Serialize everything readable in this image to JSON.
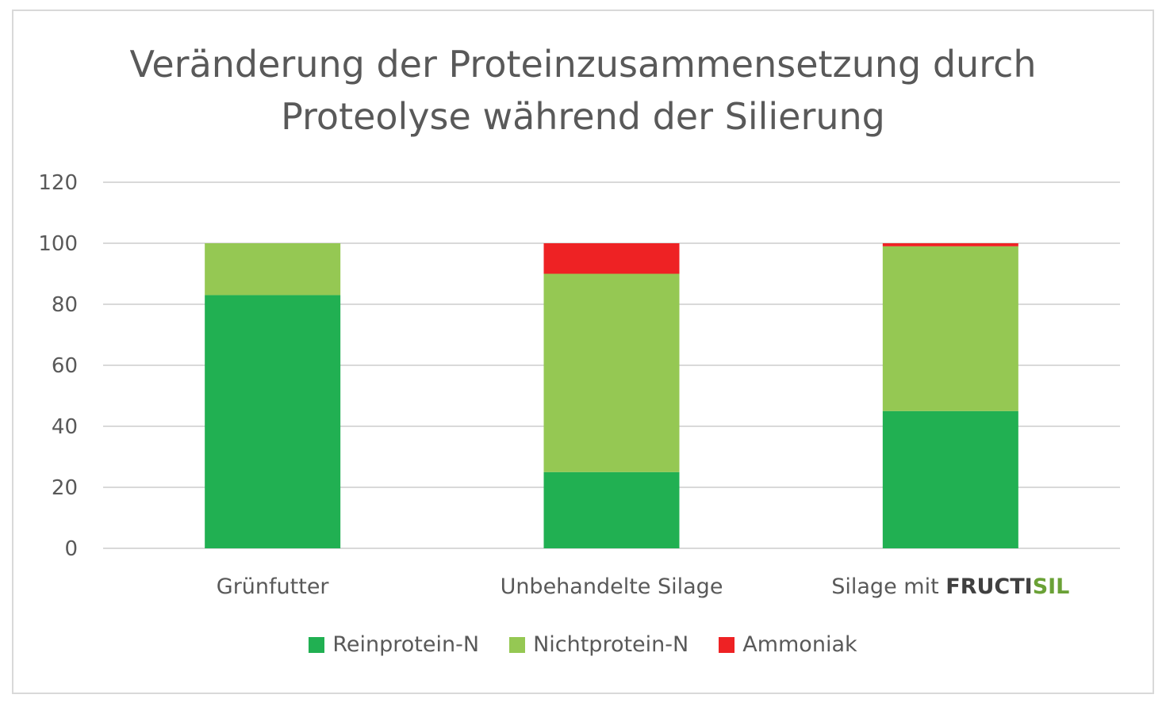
{
  "title_line1": "Veränderung der Proteinzusammensetzung durch",
  "title_line2": "Proteolyse während der Silierung",
  "colors": {
    "reinprotein": "#21b052",
    "nichtprotein": "#95c853",
    "ammoniak": "#ee2224",
    "grid": "#d9d9d9",
    "text": "#595959",
    "brand_dark": "#404040",
    "brand_green": "#6aa136"
  },
  "chart_data": {
    "type": "bar",
    "stacked": true,
    "categories": [
      "Grünfutter",
      "Unbehandelte Silage",
      "Silage mit FRUCTISIL"
    ],
    "category_parts": [
      {
        "plain": "Grünfutter"
      },
      {
        "plain": "Unbehandelte Silage"
      },
      {
        "plain": "Silage mit ",
        "brand_dark": "FRUCTI",
        "brand_green": "SIL"
      }
    ],
    "series": [
      {
        "name": "Reinprotein-N",
        "values": [
          83,
          25,
          45
        ],
        "color": "#21b052"
      },
      {
        "name": "Nichtprotein-N",
        "values": [
          17,
          65,
          54
        ],
        "color": "#95c853"
      },
      {
        "name": "Ammoniak",
        "values": [
          0,
          10,
          1
        ],
        "color": "#ee2224"
      }
    ],
    "ylim": [
      0,
      120
    ],
    "yticks": [
      0,
      20,
      40,
      60,
      80,
      100,
      120
    ],
    "grid": true,
    "legend": "bottom"
  }
}
